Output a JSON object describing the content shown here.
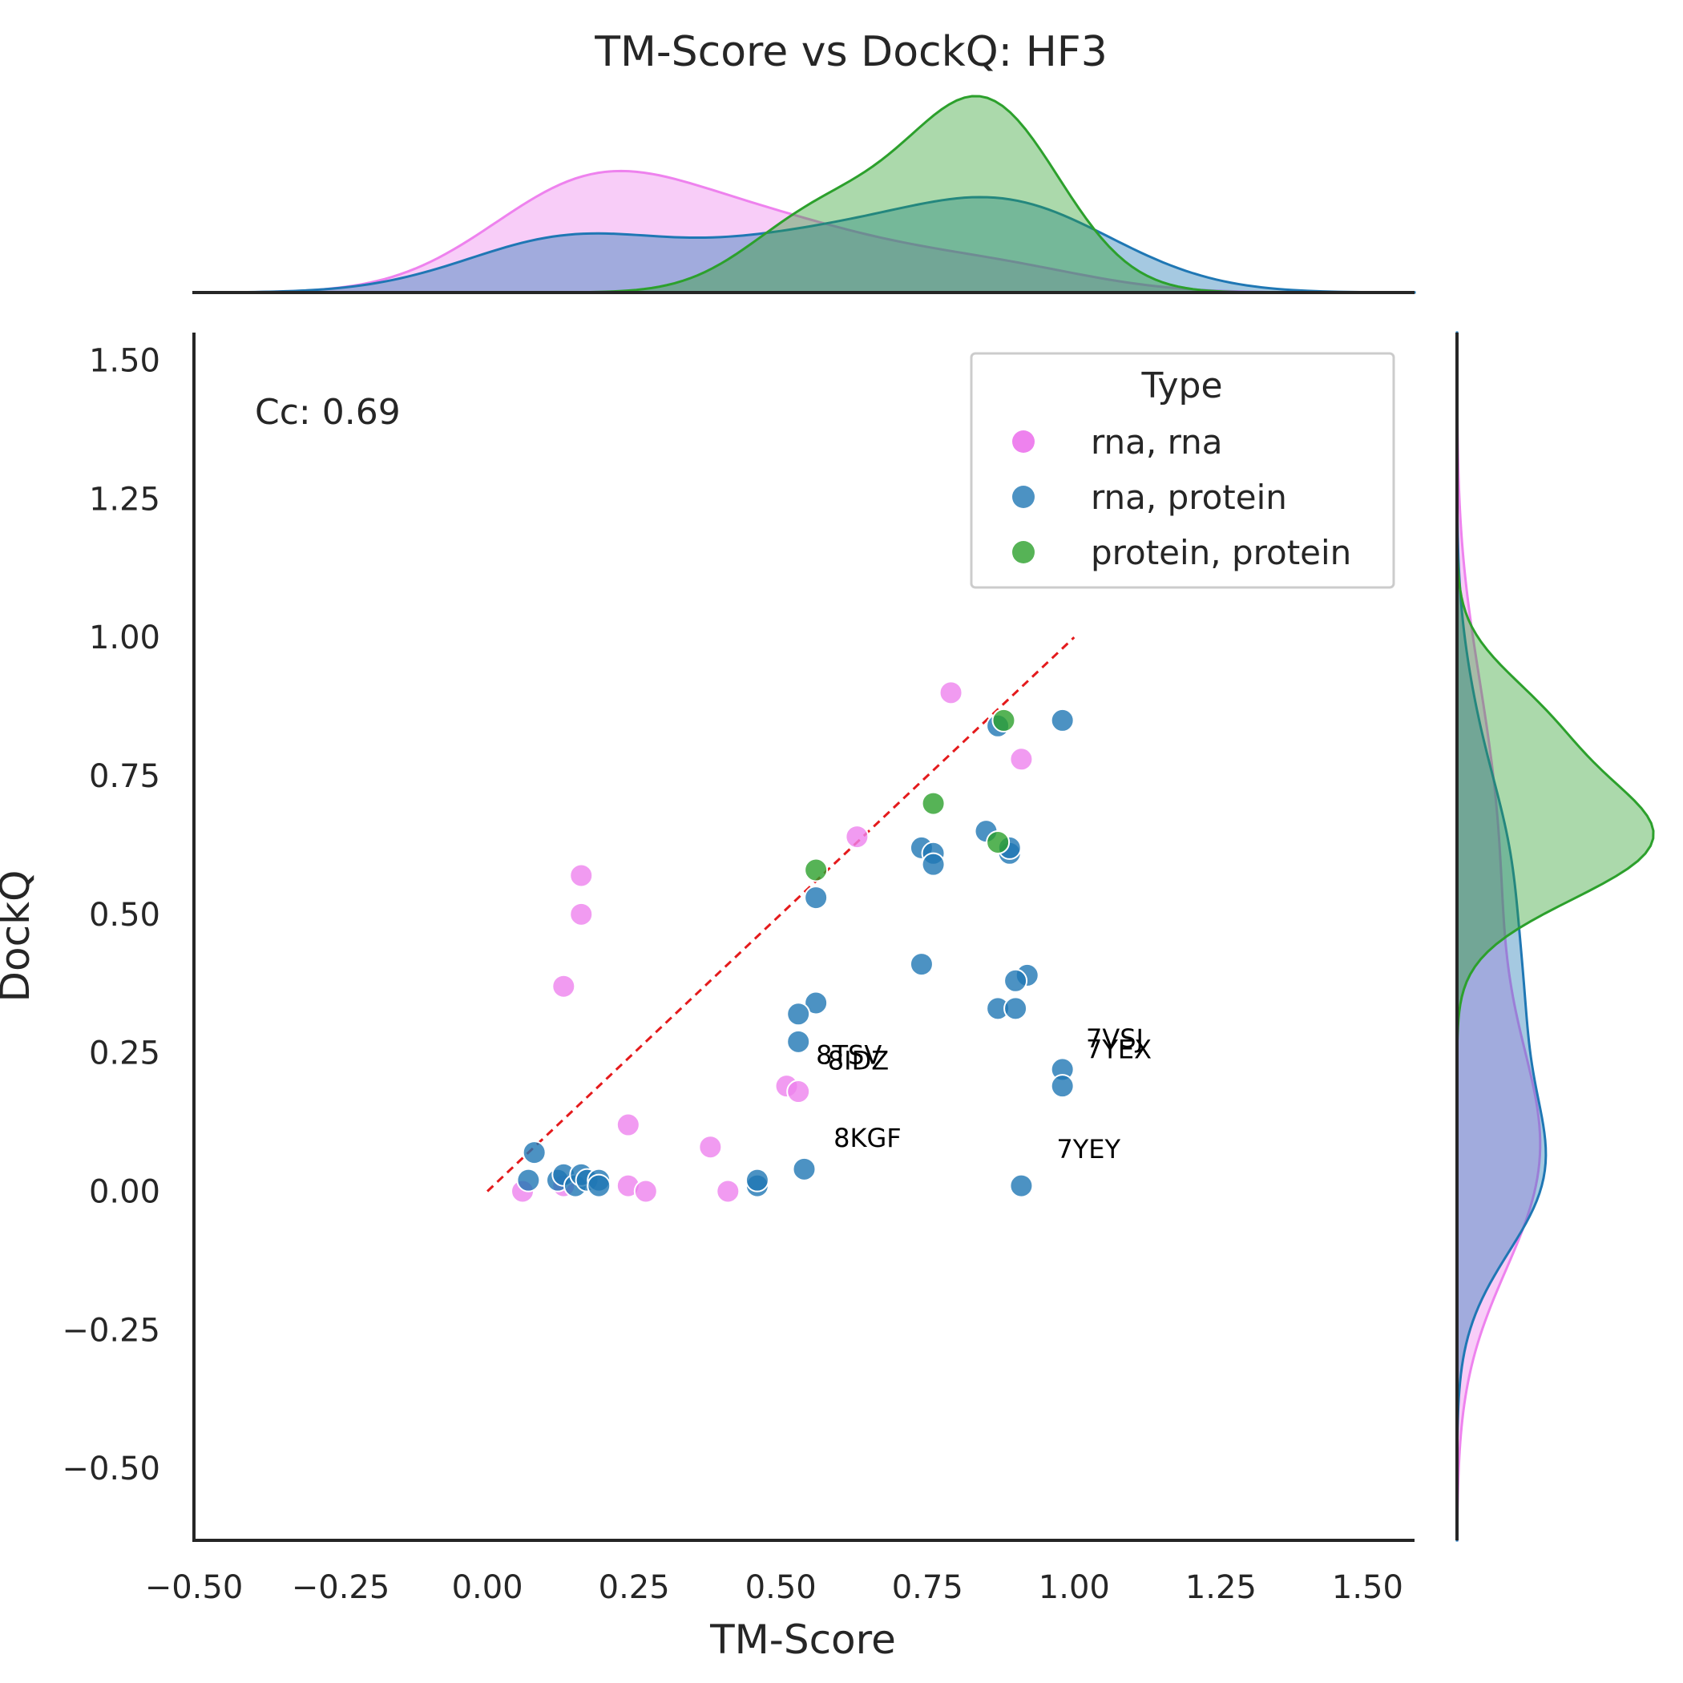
{
  "chart_data": {
    "type": "scatter",
    "title": "TM-Score vs DockQ: HF3",
    "xlabel": "TM-Score",
    "ylabel": "DockQ",
    "xlim": [
      -0.5,
      1.58
    ],
    "ylim": [
      -0.63,
      1.55
    ],
    "xticks": [
      "−0.50",
      "−0.25",
      "0.00",
      "0.25",
      "0.50",
      "0.75",
      "1.00",
      "1.25",
      "1.50"
    ],
    "yticks": [
      "−0.50",
      "−0.25",
      "0.00",
      "0.25",
      "0.50",
      "0.75",
      "1.00",
      "1.25",
      "1.50"
    ],
    "xtick_values": [
      -0.5,
      -0.25,
      0,
      0.25,
      0.5,
      0.75,
      1.0,
      1.25,
      1.5
    ],
    "ytick_values": [
      -0.5,
      -0.25,
      0,
      0.25,
      0.5,
      0.75,
      1.0,
      1.25,
      1.5
    ],
    "grid": false,
    "legend": {
      "title": "Type",
      "placement": "top-right",
      "entries": [
        "rna, rna",
        "rna, protein",
        "protein, protein"
      ]
    },
    "cc_label": "Cc: 0.69",
    "diagonal": {
      "from": [
        0,
        0
      ],
      "to": [
        1,
        1
      ],
      "color": "#e41a1c",
      "style": "dashed"
    },
    "series": [
      {
        "name": "rna, rna",
        "color": "#ee82ee",
        "points": [
          [
            0.79,
            0.9
          ],
          [
            0.91,
            0.78
          ],
          [
            0.63,
            0.64
          ],
          [
            0.16,
            0.57
          ],
          [
            0.16,
            0.5
          ],
          [
            0.13,
            0.37
          ],
          [
            0.24,
            0.12
          ],
          [
            0.38,
            0.08
          ],
          [
            0.51,
            0.19
          ],
          [
            0.53,
            0.18
          ],
          [
            0.06,
            0.0
          ],
          [
            0.13,
            0.01
          ],
          [
            0.24,
            0.01
          ],
          [
            0.27,
            0.0
          ],
          [
            0.41,
            0.0
          ]
        ]
      },
      {
        "name": "rna, protein",
        "color": "#1f77b4",
        "points": [
          [
            0.98,
            0.85
          ],
          [
            0.87,
            0.84
          ],
          [
            0.85,
            0.65
          ],
          [
            0.74,
            0.62
          ],
          [
            0.76,
            0.61
          ],
          [
            0.76,
            0.59
          ],
          [
            0.89,
            0.61
          ],
          [
            0.89,
            0.62
          ],
          [
            0.56,
            0.53
          ],
          [
            0.74,
            0.41
          ],
          [
            0.92,
            0.39
          ],
          [
            0.9,
            0.38
          ],
          [
            0.87,
            0.33
          ],
          [
            0.9,
            0.33
          ],
          [
            0.56,
            0.34
          ],
          [
            0.53,
            0.32
          ],
          [
            0.53,
            0.27
          ],
          [
            0.98,
            0.22
          ],
          [
            0.98,
            0.19
          ],
          [
            0.54,
            0.04
          ],
          [
            0.91,
            0.01
          ],
          [
            0.46,
            0.01
          ],
          [
            0.46,
            0.02
          ],
          [
            0.08,
            0.07
          ],
          [
            0.07,
            0.02
          ],
          [
            0.12,
            0.02
          ],
          [
            0.13,
            0.03
          ],
          [
            0.15,
            0.01
          ],
          [
            0.16,
            0.03
          ],
          [
            0.17,
            0.02
          ],
          [
            0.19,
            0.02
          ],
          [
            0.19,
            0.01
          ]
        ]
      },
      {
        "name": "protein, protein",
        "color": "#2ca02c",
        "points": [
          [
            0.88,
            0.85
          ],
          [
            0.76,
            0.7
          ],
          [
            0.56,
            0.58
          ],
          [
            0.87,
            0.63
          ]
        ]
      }
    ],
    "annotations": [
      {
        "text": "7VSJ",
        "x": 1.02,
        "y": 0.26
      },
      {
        "text": "7YEX",
        "x": 1.02,
        "y": 0.24
      },
      {
        "text": "8TSV",
        "x": 0.56,
        "y": 0.23
      },
      {
        "text": "8IDZ",
        "x": 0.58,
        "y": 0.22
      },
      {
        "text": "8KGF",
        "x": 0.59,
        "y": 0.08
      },
      {
        "text": "7YEY",
        "x": 0.97,
        "y": 0.06
      }
    ]
  }
}
